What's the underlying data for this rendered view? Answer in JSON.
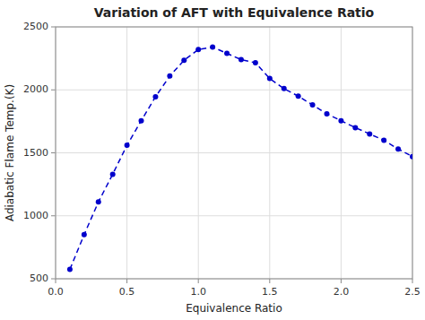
{
  "chart_data": {
    "type": "line",
    "title": "Variation of AFT with Equivalence Ratio",
    "x_label": "Equivalence Ratio",
    "y_label": "Adiabatic Flame Temp.(K)",
    "x": [
      0.1,
      0.2,
      0.3,
      0.4,
      0.5,
      0.6,
      0.7,
      0.8,
      0.9,
      1.0,
      1.1,
      1.2,
      1.3,
      1.4,
      1.5,
      1.6,
      1.7,
      1.8,
      1.9,
      2.0,
      2.1,
      2.2,
      2.3,
      2.4,
      2.5
    ],
    "values": [
      575,
      850,
      1110,
      1330,
      1560,
      1755,
      1945,
      2110,
      2235,
      2320,
      2340,
      2290,
      2240,
      2215,
      2090,
      2010,
      1950,
      1880,
      1810,
      1755,
      1700,
      1650,
      1600,
      1530,
      1470
    ],
    "color": "#0000cc",
    "marker": "circle",
    "line_style": "dashed",
    "xlim": [
      0.0,
      2.5
    ],
    "ylim": [
      500,
      2500
    ],
    "xticks": [
      {
        "value": 0.0,
        "label": "0.0"
      },
      0.5,
      {
        "value": 1.0,
        "label": "1.0"
      },
      1.5,
      {
        "value": 2.0,
        "label": "2.0"
      },
      2.5
    ],
    "yticks": [
      500,
      1000,
      1500,
      2000,
      2500
    ],
    "grid": true
  }
}
